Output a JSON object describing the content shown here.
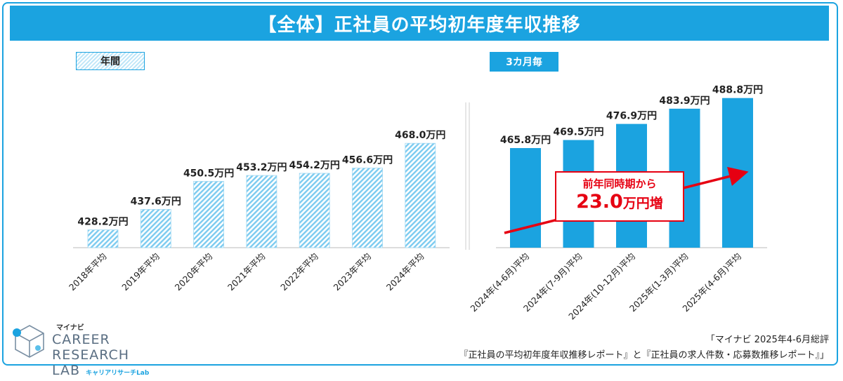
{
  "title": "【全体】正社員の平均初年度年収推移",
  "labels": {
    "annual": "年間",
    "quarterly": "3カ月毎"
  },
  "colors": {
    "accent": "#1ba3e0",
    "bar_fill": "#1ba3e0",
    "hatch": "#9fd8f2",
    "arrow": "#e60012",
    "axis": "#bbbbbb"
  },
  "chart_data": [
    {
      "type": "bar",
      "title": "年間",
      "categories": [
        "2018年平均",
        "2019年平均",
        "2020年平均",
        "2021年平均",
        "2022年平均",
        "2023年平均",
        "2024年平均"
      ],
      "values": [
        428.2,
        437.6,
        450.5,
        453.2,
        454.2,
        456.6,
        468.0
      ],
      "value_labels": [
        "428.2万円",
        "437.6万円",
        "450.5万円",
        "453.2万円",
        "454.2万円",
        "456.6万円",
        "468.0万円"
      ],
      "unit": "万円",
      "ylim": [
        420,
        490
      ],
      "xlabel": "",
      "ylabel": "",
      "grid": false,
      "style": "hatched"
    },
    {
      "type": "bar",
      "title": "3カ月毎",
      "categories": [
        "2024年(4-6月)平均",
        "2024年(7-9月)平均",
        "2024年(10-12月)平均",
        "2025年(1-3月)平均",
        "2025年(4-6月)平均"
      ],
      "values": [
        465.8,
        469.5,
        476.9,
        483.9,
        488.8
      ],
      "value_labels": [
        "465.8万円",
        "469.5万円",
        "476.9万円",
        "483.9万円",
        "488.8万円"
      ],
      "unit": "万円",
      "ylim": [
        420,
        490
      ],
      "xlabel": "",
      "ylabel": "",
      "grid": false,
      "style": "solid",
      "annotation": {
        "line1": "前年同時期から",
        "value": "23.0",
        "unit": "万円増"
      }
    }
  ],
  "logo": {
    "brand": "マイナビ",
    "line1": "CAREER RESEARCH",
    "line2": "LAB",
    "sub": "キャリアリサーチLab"
  },
  "source": {
    "line1": "「マイナビ 2025年4-6月総評",
    "line2": "『正社員の平均初年度年収推移レポート』と『正社員の求人件数・応募数推移レポート』」"
  }
}
